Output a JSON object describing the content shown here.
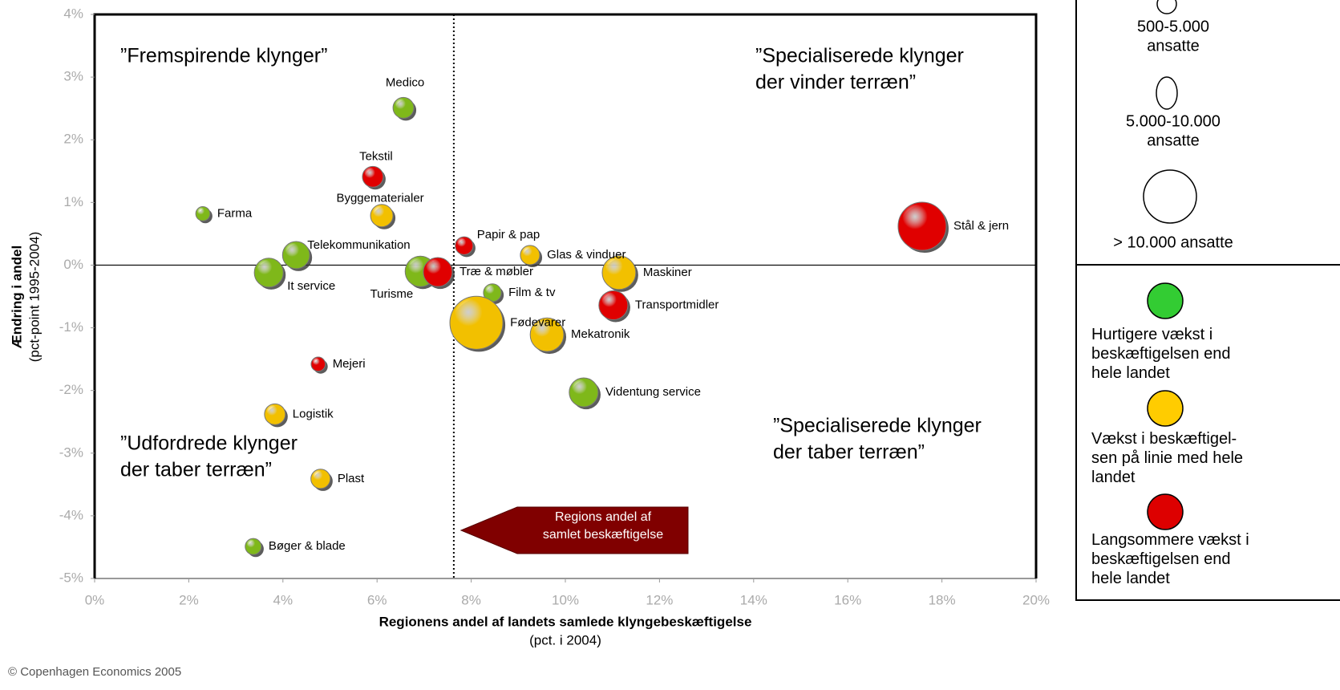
{
  "chart_data": {
    "type": "bubble",
    "xlim": [
      0,
      20
    ],
    "ylim": [
      -5,
      4
    ],
    "xticks": [
      {
        "value": 0,
        "label": "0%"
      },
      {
        "value": 2,
        "label": "2%"
      },
      {
        "value": 4,
        "label": "4%"
      },
      {
        "value": 6,
        "label": "6%"
      },
      {
        "value": 8,
        "label": "8%"
      },
      {
        "value": 10,
        "label": "10%"
      },
      {
        "value": 12,
        "label": "12%"
      },
      {
        "value": 14,
        "label": "14%"
      },
      {
        "value": 16,
        "label": "16%"
      },
      {
        "value": 18,
        "label": "18%"
      },
      {
        "value": 20,
        "label": "20%"
      }
    ],
    "yticks": [
      {
        "value": -5,
        "label": "-5%"
      },
      {
        "value": -4,
        "label": "-4%"
      },
      {
        "value": -3,
        "label": "-3%"
      },
      {
        "value": -2,
        "label": "-2%"
      },
      {
        "value": -1,
        "label": "-1%"
      },
      {
        "value": 0,
        "label": "0%"
      },
      {
        "value": 1,
        "label": "1%"
      },
      {
        "value": 2,
        "label": "2%"
      },
      {
        "value": 3,
        "label": "3%"
      },
      {
        "value": 4,
        "label": "4%"
      }
    ],
    "x_label": [
      "Regionens andel af landets samlede klyngebeskæftigelse",
      "(pct. i 2004)"
    ],
    "y_label": [
      "Ændring i andel",
      "(pct-point 1995-2004)"
    ],
    "hline": 0,
    "vline": 7.63,
    "vline_label": [
      "Regions andel af",
      "samlet beskæftigelse"
    ],
    "quadrant_labels": [
      [
        "”Fremspirende klynger”"
      ],
      [
        "”Specialiserede klynger",
        "der vinder terræn”"
      ],
      [
        "”Udfordrede klynger",
        "der taber terræn”"
      ],
      [
        "”Specialiserede klynger",
        "der taber terræn”"
      ]
    ],
    "size_legend": [
      [
        "500-5.000",
        "ansatte"
      ],
      [
        "5.000-10.000",
        "ansatte"
      ],
      [
        "> 10.000 ansatte"
      ]
    ],
    "series": [
      {
        "name": "Hurtigere vækst i beskæftigelsen end hele landet",
        "color": "#7fb81a",
        "legend_color": "#33cc33",
        "labels": [
          "Medico",
          "Farma",
          "Telekommunikation",
          "It service",
          "Turisme",
          "Film & tv",
          "Videntung service",
          "Bøger & blade"
        ],
        "x": [
          6.56,
          2.3,
          4.28,
          3.7,
          6.92,
          8.45,
          10.39,
          3.37
        ],
        "values": [
          2.51,
          0.82,
          0.16,
          -0.12,
          -0.1,
          -0.44,
          -2.03,
          -4.49
        ],
        "sizes": [
          3000,
          1400,
          5100,
          5800,
          6400,
          2200,
          5800,
          1800
        ]
      },
      {
        "name": "Vækst i beskæftigel-sen på linie med hele landet",
        "color": "#f2c000",
        "legend_color": "#ffcc00",
        "labels": [
          "Byggematerialer",
          "Glas & vinduer",
          "Maskiner",
          "Fødevarer",
          "Mekatronik",
          "Logistik",
          "Plast"
        ],
        "x": [
          6.1,
          9.25,
          11.14,
          8.11,
          9.61,
          3.83,
          4.8
        ],
        "values": [
          0.79,
          0.16,
          -0.12,
          -0.92,
          -1.11,
          -2.38,
          -3.41
        ],
        "sizes": [
          3500,
          2600,
          7800,
          19400,
          7800,
          3000,
          2600
        ]
      },
      {
        "name": "Langsommere vækst i beskæftigelsen end hele landet",
        "color": "#e00000",
        "legend_color": "#dd0000",
        "labels": [
          "Tekstil",
          "Træ & møbler",
          "Papir & pap",
          "Transportmidler",
          "Mejeri",
          "Stål & jern"
        ],
        "x": [
          5.91,
          7.29,
          7.85,
          11.02,
          4.75,
          17.58
        ],
        "values": [
          1.41,
          -0.11,
          0.31,
          -0.64,
          -1.58,
          0.62
        ],
        "sizes": [
          3000,
          5800,
          2200,
          5800,
          1400,
          16000
        ]
      }
    ]
  },
  "footer": "© Copenhagen Economics 2005"
}
